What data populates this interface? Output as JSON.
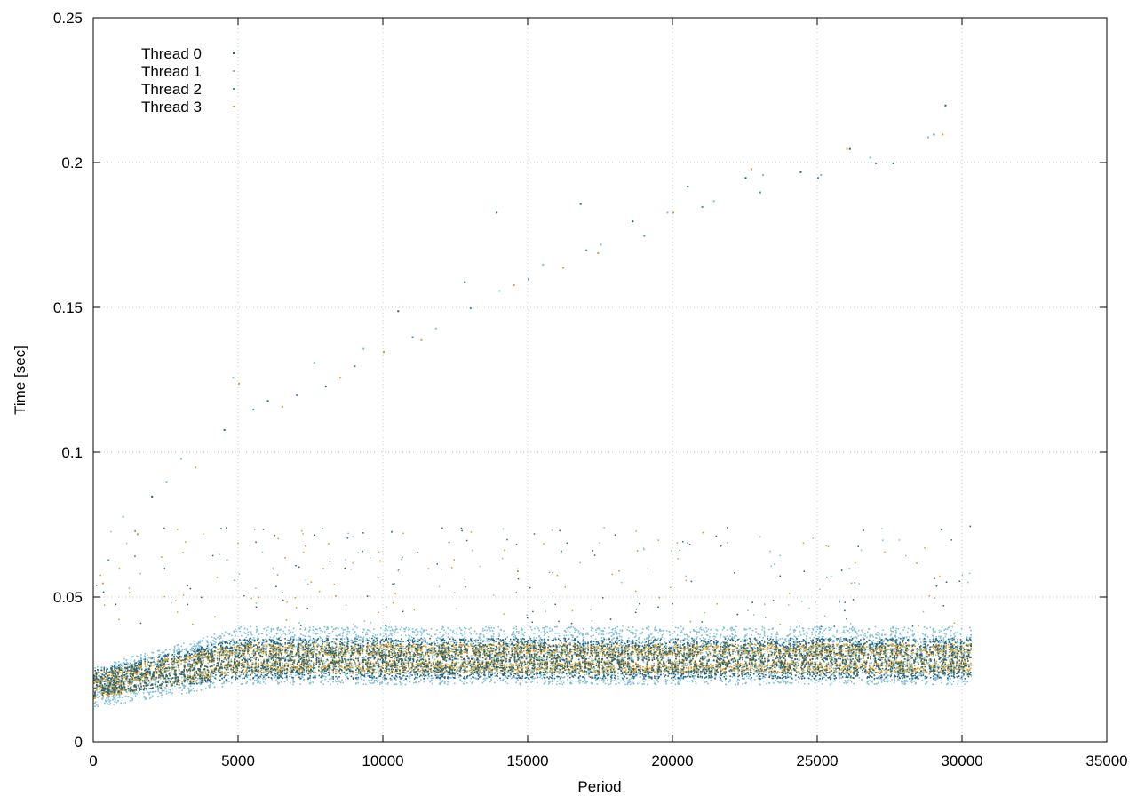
{
  "chart_data": {
    "type": "scatter",
    "xlabel": "Period",
    "ylabel": "Time [sec]",
    "xlim": [
      0,
      35000
    ],
    "ylim": [
      0,
      0.25
    ],
    "x_ticks": [
      0,
      5000,
      10000,
      15000,
      20000,
      25000,
      30000,
      35000
    ],
    "y_ticks": [
      0,
      0.05,
      0.1,
      0.15,
      0.2,
      0.25
    ],
    "x_tick_labels": [
      "0",
      "5000",
      "10000",
      "15000",
      "20000",
      "25000",
      "30000",
      "35000"
    ],
    "y_tick_labels": [
      "0",
      "0.05",
      "0.1",
      "0.15",
      "0.2",
      "0.25"
    ],
    "grid": true,
    "legend_position": "top-left",
    "series": [
      {
        "name": "Thread 0",
        "color": "#2a6478",
        "x": [
          2000,
          4500,
          6000,
          8000,
          10500,
          12800,
          13900,
          16800,
          18600,
          20500,
          22500,
          24400,
          26100,
          27600,
          29400
        ],
        "y": [
          0.085,
          0.108,
          0.118,
          0.123,
          0.149,
          0.159,
          0.183,
          0.186,
          0.18,
          0.192,
          0.195,
          0.197,
          0.205,
          0.2,
          0.22
        ]
      },
      {
        "name": "Thread 1",
        "color": "#7ec0d6",
        "x": [
          1000,
          3000,
          4800,
          7600,
          9300,
          11800,
          14000,
          15500,
          17500,
          19800,
          21400,
          23100,
          25100,
          26800,
          28800
        ],
        "y": [
          0.078,
          0.098,
          0.126,
          0.131,
          0.136,
          0.143,
          0.156,
          0.165,
          0.172,
          0.183,
          0.187,
          0.196,
          0.196,
          0.202,
          0.209
        ]
      },
      {
        "name": "Thread 2",
        "color": "#3d8fa8",
        "x": [
          500,
          2500,
          5500,
          7000,
          9000,
          11000,
          13000,
          15000,
          17000,
          19000,
          21000,
          23000,
          25000,
          27000,
          29000
        ],
        "y": [
          0.063,
          0.09,
          0.115,
          0.12,
          0.13,
          0.14,
          0.15,
          0.16,
          0.17,
          0.175,
          0.185,
          0.19,
          0.195,
          0.2,
          0.21
        ]
      },
      {
        "name": "Thread 3",
        "color": "#d8a02a",
        "x": [
          300,
          1500,
          3500,
          5000,
          6500,
          8500,
          10000,
          11300,
          14500,
          16200,
          17400,
          20000,
          22700,
          26000,
          29300
        ],
        "y": [
          0.055,
          0.072,
          0.095,
          0.124,
          0.116,
          0.126,
          0.135,
          0.139,
          0.158,
          0.164,
          0.169,
          0.183,
          0.198,
          0.205,
          0.21
        ]
      }
    ],
    "bands": [
      {
        "series": "Thread 1",
        "x_range": [
          0,
          30300
        ],
        "y_start": [
          0.012,
          0.026
        ],
        "y_end": [
          0.02,
          0.04
        ]
      },
      {
        "series": "Thread 3",
        "x_range": [
          0,
          30300
        ],
        "y_start": [
          0.015,
          0.024
        ],
        "y_end": [
          0.024,
          0.034
        ]
      },
      {
        "series": "Thread 0",
        "x_range": [
          0,
          30300
        ],
        "y_start": [
          0.016,
          0.025
        ],
        "y_end": [
          0.022,
          0.036
        ]
      }
    ]
  }
}
